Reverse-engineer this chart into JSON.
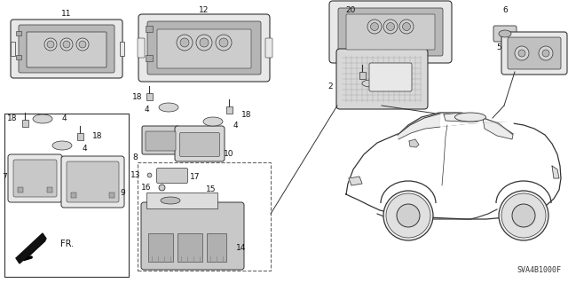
{
  "bg_color": "#ffffff",
  "fig_width": 6.4,
  "fig_height": 3.19,
  "dpi": 100,
  "diagram_code": "SVA4B1000F",
  "line_color": "#333333",
  "label_color": "#111111",
  "fill_light": "#e8e8e8",
  "fill_med": "#d0d0d0",
  "fill_dark": "#aaaaaa"
}
